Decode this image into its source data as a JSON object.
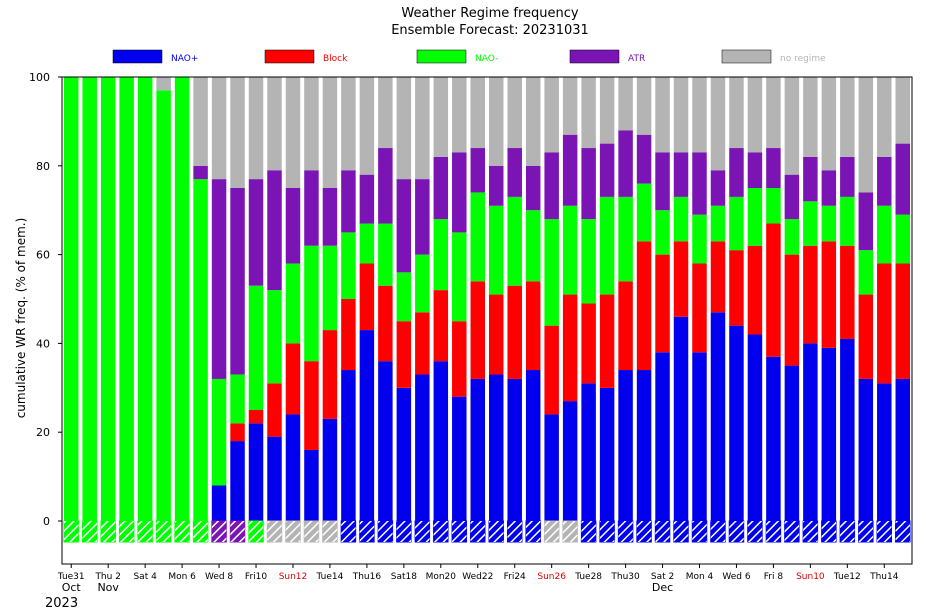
{
  "chart_data": {
    "type": "bar",
    "stacked": true,
    "title": "Weather Regime frequency",
    "subtitle": "Ensemble Forecast: 20231031",
    "ylabel": "cumulative WR freq. (% of mem.)",
    "ylim": [
      -10,
      100
    ],
    "yticks": [
      0,
      20,
      40,
      60,
      80,
      100
    ],
    "legend_position": "top",
    "series": [
      {
        "name": "NAO+",
        "color": "#0000ee"
      },
      {
        "name": "Block",
        "color": "#ff0000"
      },
      {
        "name": "NAO-",
        "color": "#00ff00"
      },
      {
        "name": "ATR",
        "color": "#7a14b4"
      },
      {
        "name": "no regime",
        "color": "#b4b4b4"
      }
    ],
    "bars": [
      [
        0,
        0,
        100,
        0,
        0
      ],
      [
        0,
        0,
        100,
        0,
        0
      ],
      [
        0,
        0,
        100,
        0,
        0
      ],
      [
        0,
        0,
        100,
        0,
        0
      ],
      [
        0,
        0,
        100,
        0,
        0
      ],
      [
        0,
        0,
        97,
        0,
        3
      ],
      [
        0,
        0,
        100,
        0,
        0
      ],
      [
        0,
        0,
        77,
        3,
        20
      ],
      [
        8,
        0,
        24,
        45,
        23
      ],
      [
        18,
        4,
        11,
        42,
        25
      ],
      [
        22,
        3,
        28,
        24,
        23
      ],
      [
        19,
        12,
        21,
        27,
        21
      ],
      [
        24,
        16,
        18,
        17,
        25
      ],
      [
        16,
        20,
        26,
        17,
        21
      ],
      [
        23,
        20,
        19,
        13,
        25
      ],
      [
        34,
        16,
        15,
        14,
        21
      ],
      [
        43,
        15,
        9,
        11,
        22
      ],
      [
        36,
        17,
        14,
        17,
        16
      ],
      [
        30,
        15,
        11,
        21,
        23
      ],
      [
        33,
        14,
        13,
        17,
        23
      ],
      [
        36,
        16,
        16,
        14,
        18
      ],
      [
        28,
        17,
        20,
        18,
        17
      ],
      [
        32,
        22,
        20,
        10,
        16
      ],
      [
        33,
        18,
        20,
        9,
        20
      ],
      [
        32,
        21,
        20,
        11,
        16
      ],
      [
        34,
        20,
        16,
        10,
        20
      ],
      [
        24,
        20,
        24,
        15,
        17
      ],
      [
        27,
        24,
        20,
        16,
        13
      ],
      [
        31,
        18,
        19,
        16,
        16
      ],
      [
        30,
        21,
        22,
        12,
        15
      ],
      [
        34,
        20,
        19,
        15,
        12
      ],
      [
        34,
        29,
        13,
        11,
        13
      ],
      [
        38,
        22,
        10,
        13,
        17
      ],
      [
        46,
        17,
        10,
        10,
        17
      ],
      [
        38,
        20,
        11,
        14,
        17
      ],
      [
        47,
        16,
        8,
        8,
        21
      ],
      [
        44,
        17,
        12,
        11,
        16
      ],
      [
        42,
        20,
        13,
        8,
        17
      ],
      [
        37,
        30,
        8,
        9,
        16
      ],
      [
        35,
        25,
        8,
        10,
        22
      ],
      [
        40,
        22,
        10,
        10,
        18
      ],
      [
        39,
        24,
        8,
        8,
        21
      ],
      [
        41,
        21,
        11,
        9,
        18
      ],
      [
        32,
        19,
        10,
        13,
        26
      ],
      [
        31,
        27,
        13,
        11,
        18
      ],
      [
        32,
        26,
        11,
        16,
        15
      ]
    ],
    "dominant_regime": [
      "NAO-",
      "NAO-",
      "NAO-",
      "NAO-",
      "NAO-",
      "NAO-",
      "NAO-",
      "NAO-",
      "ATR",
      "ATR",
      "NAO-",
      "no regime",
      "no regime",
      "no regime",
      "no regime",
      "NAO+",
      "NAO+",
      "NAO+",
      "NAO+",
      "NAO+",
      "NAO+",
      "NAO+",
      "NAO+",
      "NAO+",
      "NAO+",
      "NAO+",
      "no regime",
      "no regime",
      "NAO+",
      "NAO+",
      "NAO+",
      "NAO+",
      "NAO+",
      "NAO+",
      "NAO+",
      "NAO+",
      "NAO+",
      "NAO+",
      "NAO+",
      "NAO+",
      "NAO+",
      "NAO+",
      "NAO+",
      "NAO+",
      "NAO+",
      "NAO+"
    ],
    "x_ticks": [
      {
        "index": 0,
        "label": "Tue31",
        "weekend": false
      },
      {
        "index": 2,
        "label": "Thu 2",
        "weekend": false
      },
      {
        "index": 4,
        "label": "Sat 4",
        "weekend": false
      },
      {
        "index": 6,
        "label": "Mon 6",
        "weekend": false
      },
      {
        "index": 8,
        "label": "Wed 8",
        "weekend": false
      },
      {
        "index": 10,
        "label": "Fri10",
        "weekend": false
      },
      {
        "index": 12,
        "label": "Sun12",
        "weekend": true
      },
      {
        "index": 14,
        "label": "Tue14",
        "weekend": false
      },
      {
        "index": 16,
        "label": "Thu16",
        "weekend": false
      },
      {
        "index": 18,
        "label": "Sat18",
        "weekend": false
      },
      {
        "index": 20,
        "label": "Mon20",
        "weekend": false
      },
      {
        "index": 22,
        "label": "Wed22",
        "weekend": false
      },
      {
        "index": 24,
        "label": "Fri24",
        "weekend": false
      },
      {
        "index": 26,
        "label": "Sun26",
        "weekend": true
      },
      {
        "index": 28,
        "label": "Tue28",
        "weekend": false
      },
      {
        "index": 30,
        "label": "Thu30",
        "weekend": false
      },
      {
        "index": 32,
        "label": "Sat 2",
        "weekend": false
      },
      {
        "index": 34,
        "label": "Mon 4",
        "weekend": false
      },
      {
        "index": 36,
        "label": "Wed 6",
        "weekend": false
      },
      {
        "index": 38,
        "label": "Fri 8",
        "weekend": false
      },
      {
        "index": 40,
        "label": "Sun10",
        "weekend": true
      },
      {
        "index": 42,
        "label": "Tue12",
        "weekend": false
      },
      {
        "index": 44,
        "label": "Thu14",
        "weekend": false
      }
    ],
    "month_labels": [
      {
        "index": 0,
        "label": "Oct"
      },
      {
        "index": 2,
        "label": "Nov"
      },
      {
        "index": 32,
        "label": "Dec"
      }
    ],
    "year_label": "2023",
    "weekend_color": "#dd0000"
  }
}
